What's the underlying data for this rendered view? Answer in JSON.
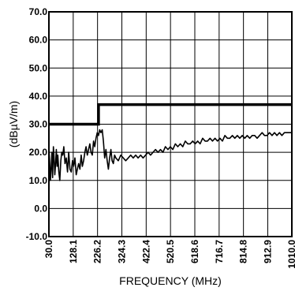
{
  "chart_data": {
    "type": "line",
    "title": "",
    "xlabel": "FREQUENCY (MHz)",
    "ylabel": "(dBµV/m)",
    "xlim": [
      30.0,
      1010.0
    ],
    "ylim": [
      -10.0,
      70.0
    ],
    "grid": true,
    "x_ticks": [
      "30.0",
      "128.1",
      "226.2",
      "324.3",
      "422.4",
      "520.5",
      "618.6",
      "716.7",
      "814.8",
      "912.9",
      "1010.0"
    ],
    "y_ticks": [
      "-10.0",
      "0.0",
      "10.0",
      "20.0",
      "30.0",
      "40.0",
      "50.0",
      "60.0",
      "70.0"
    ],
    "series": [
      {
        "name": "",
        "style": "limit",
        "color": "#000000",
        "x": [
          30.0,
          230.0,
          230.0,
          1010.0
        ],
        "y": [
          30.0,
          30.0,
          37.0,
          37.0
        ]
      },
      {
        "name": "",
        "style": "measured",
        "color": "#000000",
        "x": [
          30,
          33,
          36,
          39,
          42,
          45,
          48,
          51,
          54,
          57,
          60,
          63,
          66,
          70,
          74,
          78,
          82,
          86,
          90,
          95,
          100,
          105,
          110,
          115,
          120,
          125,
          130,
          135,
          140,
          145,
          150,
          155,
          160,
          165,
          170,
          175,
          180,
          185,
          190,
          195,
          200,
          205,
          210,
          215,
          220,
          225,
          230,
          235,
          240,
          245,
          250,
          255,
          260,
          265,
          270,
          275,
          280,
          285,
          290,
          295,
          300,
          310,
          320,
          330,
          340,
          350,
          360,
          370,
          380,
          390,
          400,
          410,
          420,
          430,
          440,
          450,
          460,
          470,
          480,
          490,
          500,
          510,
          520,
          530,
          540,
          550,
          560,
          570,
          580,
          590,
          600,
          610,
          620,
          630,
          640,
          650,
          660,
          670,
          680,
          690,
          700,
          710,
          720,
          730,
          740,
          750,
          760,
          770,
          780,
          790,
          800,
          810,
          820,
          830,
          840,
          850,
          860,
          870,
          880,
          890,
          900,
          910,
          920,
          930,
          940,
          950,
          960,
          970,
          980,
          990,
          1000,
          1010
        ],
        "y": [
          22,
          17,
          10,
          14,
          20,
          11,
          22,
          18,
          12,
          16,
          21,
          15,
          19,
          13,
          10,
          17,
          20,
          19,
          22,
          16,
          18,
          13,
          20,
          14,
          13,
          17,
          15,
          18,
          12,
          14,
          16,
          14,
          19,
          15,
          17,
          20,
          22,
          19,
          21,
          23,
          20,
          19,
          24,
          22,
          25,
          27,
          26,
          28,
          27,
          28,
          24,
          18,
          21,
          17,
          14,
          18,
          21,
          17,
          16,
          19,
          18,
          17,
          19,
          18,
          17,
          18,
          19,
          18,
          19,
          18,
          19,
          18,
          19,
          20,
          19,
          20,
          21,
          20,
          21,
          20,
          22,
          21,
          22,
          21,
          23,
          22,
          23,
          22,
          24,
          23,
          23,
          24,
          23,
          24,
          23,
          25,
          24,
          24,
          25,
          24,
          25,
          24,
          25,
          24,
          26,
          25,
          25,
          26,
          25,
          26,
          25,
          26,
          25,
          26,
          25,
          26,
          26,
          25,
          26,
          27,
          26,
          26,
          27,
          26,
          27,
          26,
          27,
          26,
          27,
          27,
          27,
          27
        ]
      }
    ]
  }
}
